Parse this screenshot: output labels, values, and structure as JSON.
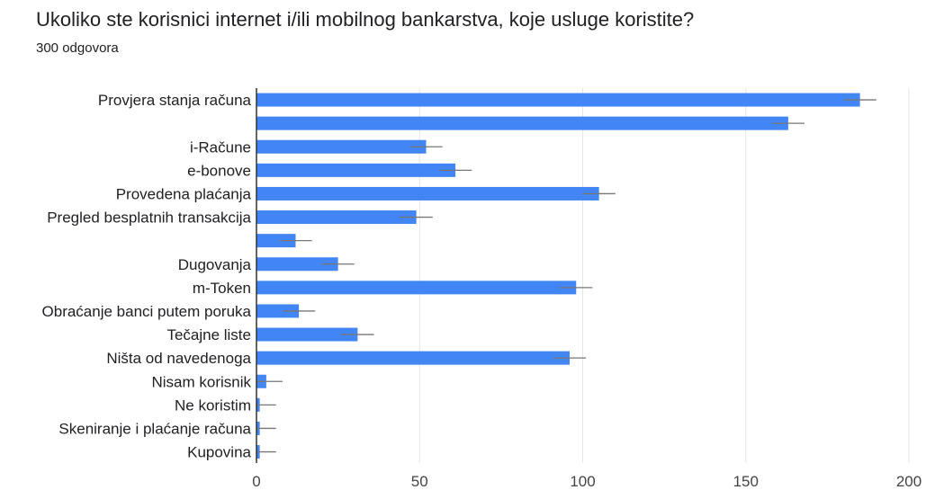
{
  "question": {
    "title": "Ukoliko ste korisnici internet i/ili mobilnog bankarstva, koje usluge koristite?",
    "response_count": "300 odgovora"
  },
  "chart_data": {
    "type": "bar",
    "orientation": "horizontal",
    "categories": [
      "Provjera stanja računa",
      "",
      "i-Račune",
      "e-bonove",
      "Provedena plaćanja",
      "Pregled besplatnih transakcija",
      "",
      "Dugovanja",
      "m-Token",
      "Obraćanje banci putem poruka",
      "Tečajne liste",
      "Ništa od navedenoga",
      "Nisam korisnik",
      "Ne koristim",
      "Skeniranje i plaćanje računa",
      "Kupovina"
    ],
    "values": [
      185,
      163,
      52,
      61,
      105,
      49,
      12,
      25,
      98,
      13,
      31,
      96,
      3,
      1,
      1,
      1
    ],
    "error": 5,
    "xlim": [
      0,
      200
    ],
    "xticks": [
      0,
      50,
      100,
      150,
      200
    ],
    "bar_color": "#4285f4",
    "error_bar_color": "#777777",
    "grid": true
  }
}
